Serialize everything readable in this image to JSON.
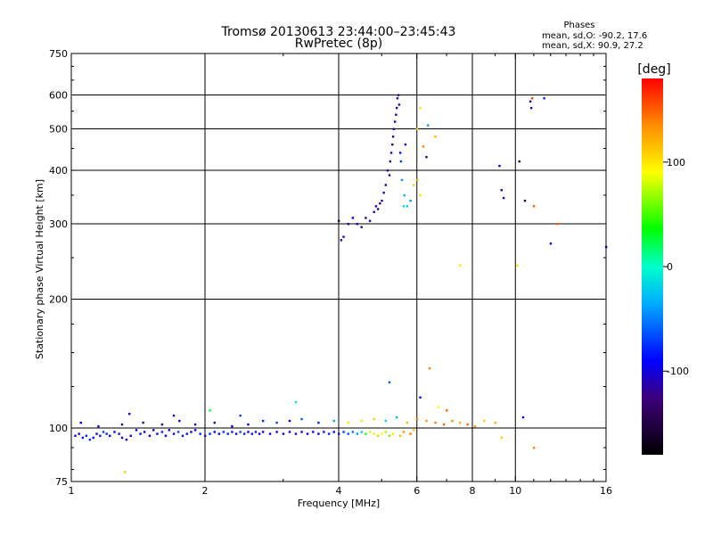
{
  "chart_data": {
    "type": "scatter",
    "title": "Tromsø 20130613 23:44:00–23:45:43",
    "subtitle": "RwPretec (8p)",
    "xlabel": "Frequency [MHz]",
    "ylabel": "Stationary phase Virtual Height [km]",
    "x_scale": "log",
    "y_scale": "log",
    "xlim": [
      1,
      16
    ],
    "ylim": [
      75,
      750
    ],
    "x_ticks": [
      1,
      2,
      4,
      6,
      8,
      10,
      16
    ],
    "x_tick_labels": [
      "1",
      "2",
      "4",
      "6",
      "8",
      "10",
      "16"
    ],
    "x_minor_ticks": [
      3,
      5,
      7,
      9,
      11,
      12,
      13,
      14,
      15
    ],
    "y_ticks": [
      75,
      100,
      200,
      300,
      400,
      500,
      600,
      750
    ],
    "y_tick_labels": [
      "75",
      "100",
      "200",
      "300",
      "400",
      "500",
      "600",
      "750"
    ],
    "grid": true,
    "phases_box": {
      "title": "Phases",
      "line_o": "mean, sd,O: -90.2, 17.6",
      "line_x": "mean, sd,X:  90.9, 27.2"
    },
    "colorbar": {
      "label": "[deg]",
      "range": [
        -180,
        180
      ],
      "ticks": [
        -100,
        0,
        100
      ],
      "tick_labels": [
        "-100",
        "0",
        "100"
      ]
    },
    "points": [
      [
        1.02,
        96,
        -90
      ],
      [
        1.04,
        97,
        -95
      ],
      [
        1.06,
        95,
        -85
      ],
      [
        1.08,
        96,
        -80
      ],
      [
        1.1,
        94,
        -75
      ],
      [
        1.12,
        95,
        -88
      ],
      [
        1.14,
        97,
        -92
      ],
      [
        1.16,
        96,
        -85
      ],
      [
        1.18,
        98,
        -70
      ],
      [
        1.2,
        97,
        -78
      ],
      [
        1.22,
        96,
        -95
      ],
      [
        1.25,
        98,
        -90
      ],
      [
        1.28,
        97,
        -100
      ],
      [
        1.3,
        95,
        -105
      ],
      [
        1.33,
        94,
        -110
      ],
      [
        1.36,
        96,
        -100
      ],
      [
        1.4,
        99,
        -95
      ],
      [
        1.43,
        97,
        -85
      ],
      [
        1.46,
        98,
        -90
      ],
      [
        1.5,
        96,
        -100
      ],
      [
        1.53,
        99,
        -105
      ],
      [
        1.56,
        97,
        -95
      ],
      [
        1.6,
        98,
        -80
      ],
      [
        1.63,
        96,
        -90
      ],
      [
        1.66,
        99,
        -100
      ],
      [
        1.7,
        97,
        -95
      ],
      [
        1.74,
        98,
        -70
      ],
      [
        1.78,
        96,
        -85
      ],
      [
        1.82,
        97,
        -90
      ],
      [
        1.86,
        98,
        -100
      ],
      [
        1.9,
        99,
        -95
      ],
      [
        1.95,
        97,
        -80
      ],
      [
        2.0,
        96,
        -85
      ],
      [
        2.05,
        97,
        -78
      ],
      [
        2.1,
        98,
        -88
      ],
      [
        2.15,
        97,
        -92
      ],
      [
        2.2,
        98,
        -75
      ],
      [
        2.25,
        97,
        -80
      ],
      [
        2.3,
        98,
        -85
      ],
      [
        2.35,
        97,
        -90
      ],
      [
        2.4,
        98,
        -70
      ],
      [
        2.45,
        97,
        -80
      ],
      [
        2.5,
        98,
        -95
      ],
      [
        2.55,
        97,
        -85
      ],
      [
        2.6,
        98,
        -80
      ],
      [
        2.65,
        97,
        -90
      ],
      [
        2.7,
        98,
        -100
      ],
      [
        2.8,
        97,
        -95
      ],
      [
        2.9,
        98,
        -88
      ],
      [
        3.0,
        97,
        -92
      ],
      [
        3.1,
        98,
        -100
      ],
      [
        3.2,
        97,
        -105
      ],
      [
        3.3,
        98,
        -95
      ],
      [
        3.4,
        97,
        -100
      ],
      [
        3.5,
        98,
        -90
      ],
      [
        3.6,
        97,
        -95
      ],
      [
        3.7,
        98,
        -85
      ],
      [
        3.8,
        97,
        -80
      ],
      [
        3.9,
        98,
        -90
      ],
      [
        4.0,
        97,
        -85
      ],
      [
        4.1,
        98,
        -70
      ],
      [
        4.2,
        97,
        -60
      ],
      [
        4.3,
        98,
        -50
      ],
      [
        4.4,
        97,
        -40
      ],
      [
        4.5,
        98,
        -20
      ],
      [
        4.6,
        97,
        40
      ],
      [
        4.7,
        98,
        80
      ],
      [
        4.8,
        97,
        100
      ],
      [
        4.9,
        96,
        110
      ],
      [
        5.0,
        97,
        90
      ],
      [
        5.1,
        98,
        70
      ],
      [
        5.2,
        96,
        60
      ],
      [
        5.3,
        97,
        100
      ],
      [
        5.5,
        96,
        120
      ],
      [
        5.6,
        98,
        130
      ],
      [
        5.8,
        97,
        140
      ],
      [
        5.9,
        99,
        110
      ],
      [
        1.05,
        103,
        -95
      ],
      [
        1.15,
        101,
        -110
      ],
      [
        1.3,
        102,
        -120
      ],
      [
        1.45,
        103,
        -115
      ],
      [
        1.6,
        102,
        -120
      ],
      [
        1.75,
        104,
        -100
      ],
      [
        1.9,
        102,
        -110
      ],
      [
        2.1,
        103,
        -120
      ],
      [
        2.3,
        101,
        -100
      ],
      [
        2.5,
        102,
        -90
      ],
      [
        2.7,
        104,
        -80
      ],
      [
        2.9,
        103,
        -70
      ],
      [
        3.1,
        104,
        -90
      ],
      [
        3.3,
        105,
        -60
      ],
      [
        3.6,
        103,
        -80
      ],
      [
        3.9,
        104,
        -40
      ],
      [
        4.2,
        103,
        100
      ],
      [
        4.5,
        104,
        80
      ],
      [
        4.8,
        105,
        110
      ],
      [
        5.1,
        104,
        -20
      ],
      [
        5.4,
        106,
        -30
      ],
      [
        5.7,
        103,
        120
      ],
      [
        6.0,
        105,
        140
      ],
      [
        6.3,
        104,
        130
      ],
      [
        6.6,
        103,
        140
      ],
      [
        6.9,
        102,
        150
      ],
      [
        7.2,
        104,
        135
      ],
      [
        7.5,
        103,
        120
      ],
      [
        7.8,
        102,
        150
      ],
      [
        8.1,
        101,
        130
      ],
      [
        8.5,
        104,
        110
      ],
      [
        9.0,
        103,
        120
      ],
      [
        9.3,
        95,
        110
      ],
      [
        1.32,
        79,
        110
      ],
      [
        1.35,
        108,
        -90
      ],
      [
        1.7,
        107,
        -110
      ],
      [
        2.05,
        110,
        30
      ],
      [
        2.4,
        107,
        -70
      ],
      [
        3.2,
        115,
        -10
      ],
      [
        5.2,
        128,
        -60
      ],
      [
        6.1,
        118,
        -90
      ],
      [
        6.4,
        138,
        140
      ],
      [
        6.7,
        112,
        90
      ],
      [
        7.0,
        110,
        150
      ],
      [
        10.4,
        106,
        -100
      ],
      [
        11.0,
        90,
        140
      ],
      [
        4.0,
        305,
        -140
      ],
      [
        4.05,
        275,
        -120
      ],
      [
        4.1,
        280,
        -110
      ],
      [
        4.2,
        300,
        -110
      ],
      [
        4.3,
        310,
        -100
      ],
      [
        4.4,
        300,
        -110
      ],
      [
        4.5,
        295,
        -120
      ],
      [
        4.6,
        310,
        -120
      ],
      [
        4.7,
        305,
        -110
      ],
      [
        4.8,
        320,
        -110
      ],
      [
        4.85,
        330,
        -120
      ],
      [
        4.9,
        325,
        -110
      ],
      [
        4.95,
        335,
        -120
      ],
      [
        5.0,
        340,
        -115
      ],
      [
        5.05,
        355,
        -110
      ],
      [
        5.1,
        370,
        -110
      ],
      [
        5.15,
        400,
        -120
      ],
      [
        5.2,
        390,
        -130
      ],
      [
        5.22,
        420,
        -120
      ],
      [
        5.25,
        440,
        -110
      ],
      [
        5.28,
        460,
        -120
      ],
      [
        5.3,
        480,
        -110
      ],
      [
        5.32,
        500,
        -120
      ],
      [
        5.35,
        520,
        -110
      ],
      [
        5.38,
        540,
        -110
      ],
      [
        5.4,
        560,
        -110
      ],
      [
        5.42,
        590,
        -120
      ],
      [
        5.45,
        600,
        -110
      ],
      [
        5.47,
        570,
        -100
      ],
      [
        5.5,
        440,
        -90
      ],
      [
        5.52,
        420,
        -70
      ],
      [
        5.55,
        380,
        -40
      ],
      [
        5.6,
        330,
        -20
      ],
      [
        5.62,
        350,
        -30
      ],
      [
        5.65,
        460,
        -100
      ],
      [
        5.7,
        330,
        -20
      ],
      [
        5.8,
        340,
        -40
      ],
      [
        5.9,
        370,
        110
      ],
      [
        6.0,
        380,
        130
      ],
      [
        6.1,
        350,
        100
      ],
      [
        6.0,
        500,
        110
      ],
      [
        6.1,
        560,
        100
      ],
      [
        6.2,
        455,
        140
      ],
      [
        6.3,
        430,
        -140
      ],
      [
        6.35,
        510,
        -40
      ],
      [
        6.6,
        480,
        120
      ],
      [
        7.5,
        240,
        100
      ],
      [
        9.2,
        410,
        -100
      ],
      [
        9.3,
        360,
        -110
      ],
      [
        9.4,
        345,
        -120
      ],
      [
        10.1,
        240,
        100
      ],
      [
        10.2,
        420,
        -150
      ],
      [
        10.5,
        340,
        -140
      ],
      [
        10.8,
        580,
        -110
      ],
      [
        10.85,
        560,
        -110
      ],
      [
        10.9,
        590,
        160
      ],
      [
        11.6,
        590,
        -80
      ],
      [
        12.0,
        270,
        -100
      ],
      [
        12.4,
        300,
        150
      ],
      [
        16.0,
        265,
        -100
      ],
      [
        11.0,
        330,
        150
      ]
    ]
  }
}
